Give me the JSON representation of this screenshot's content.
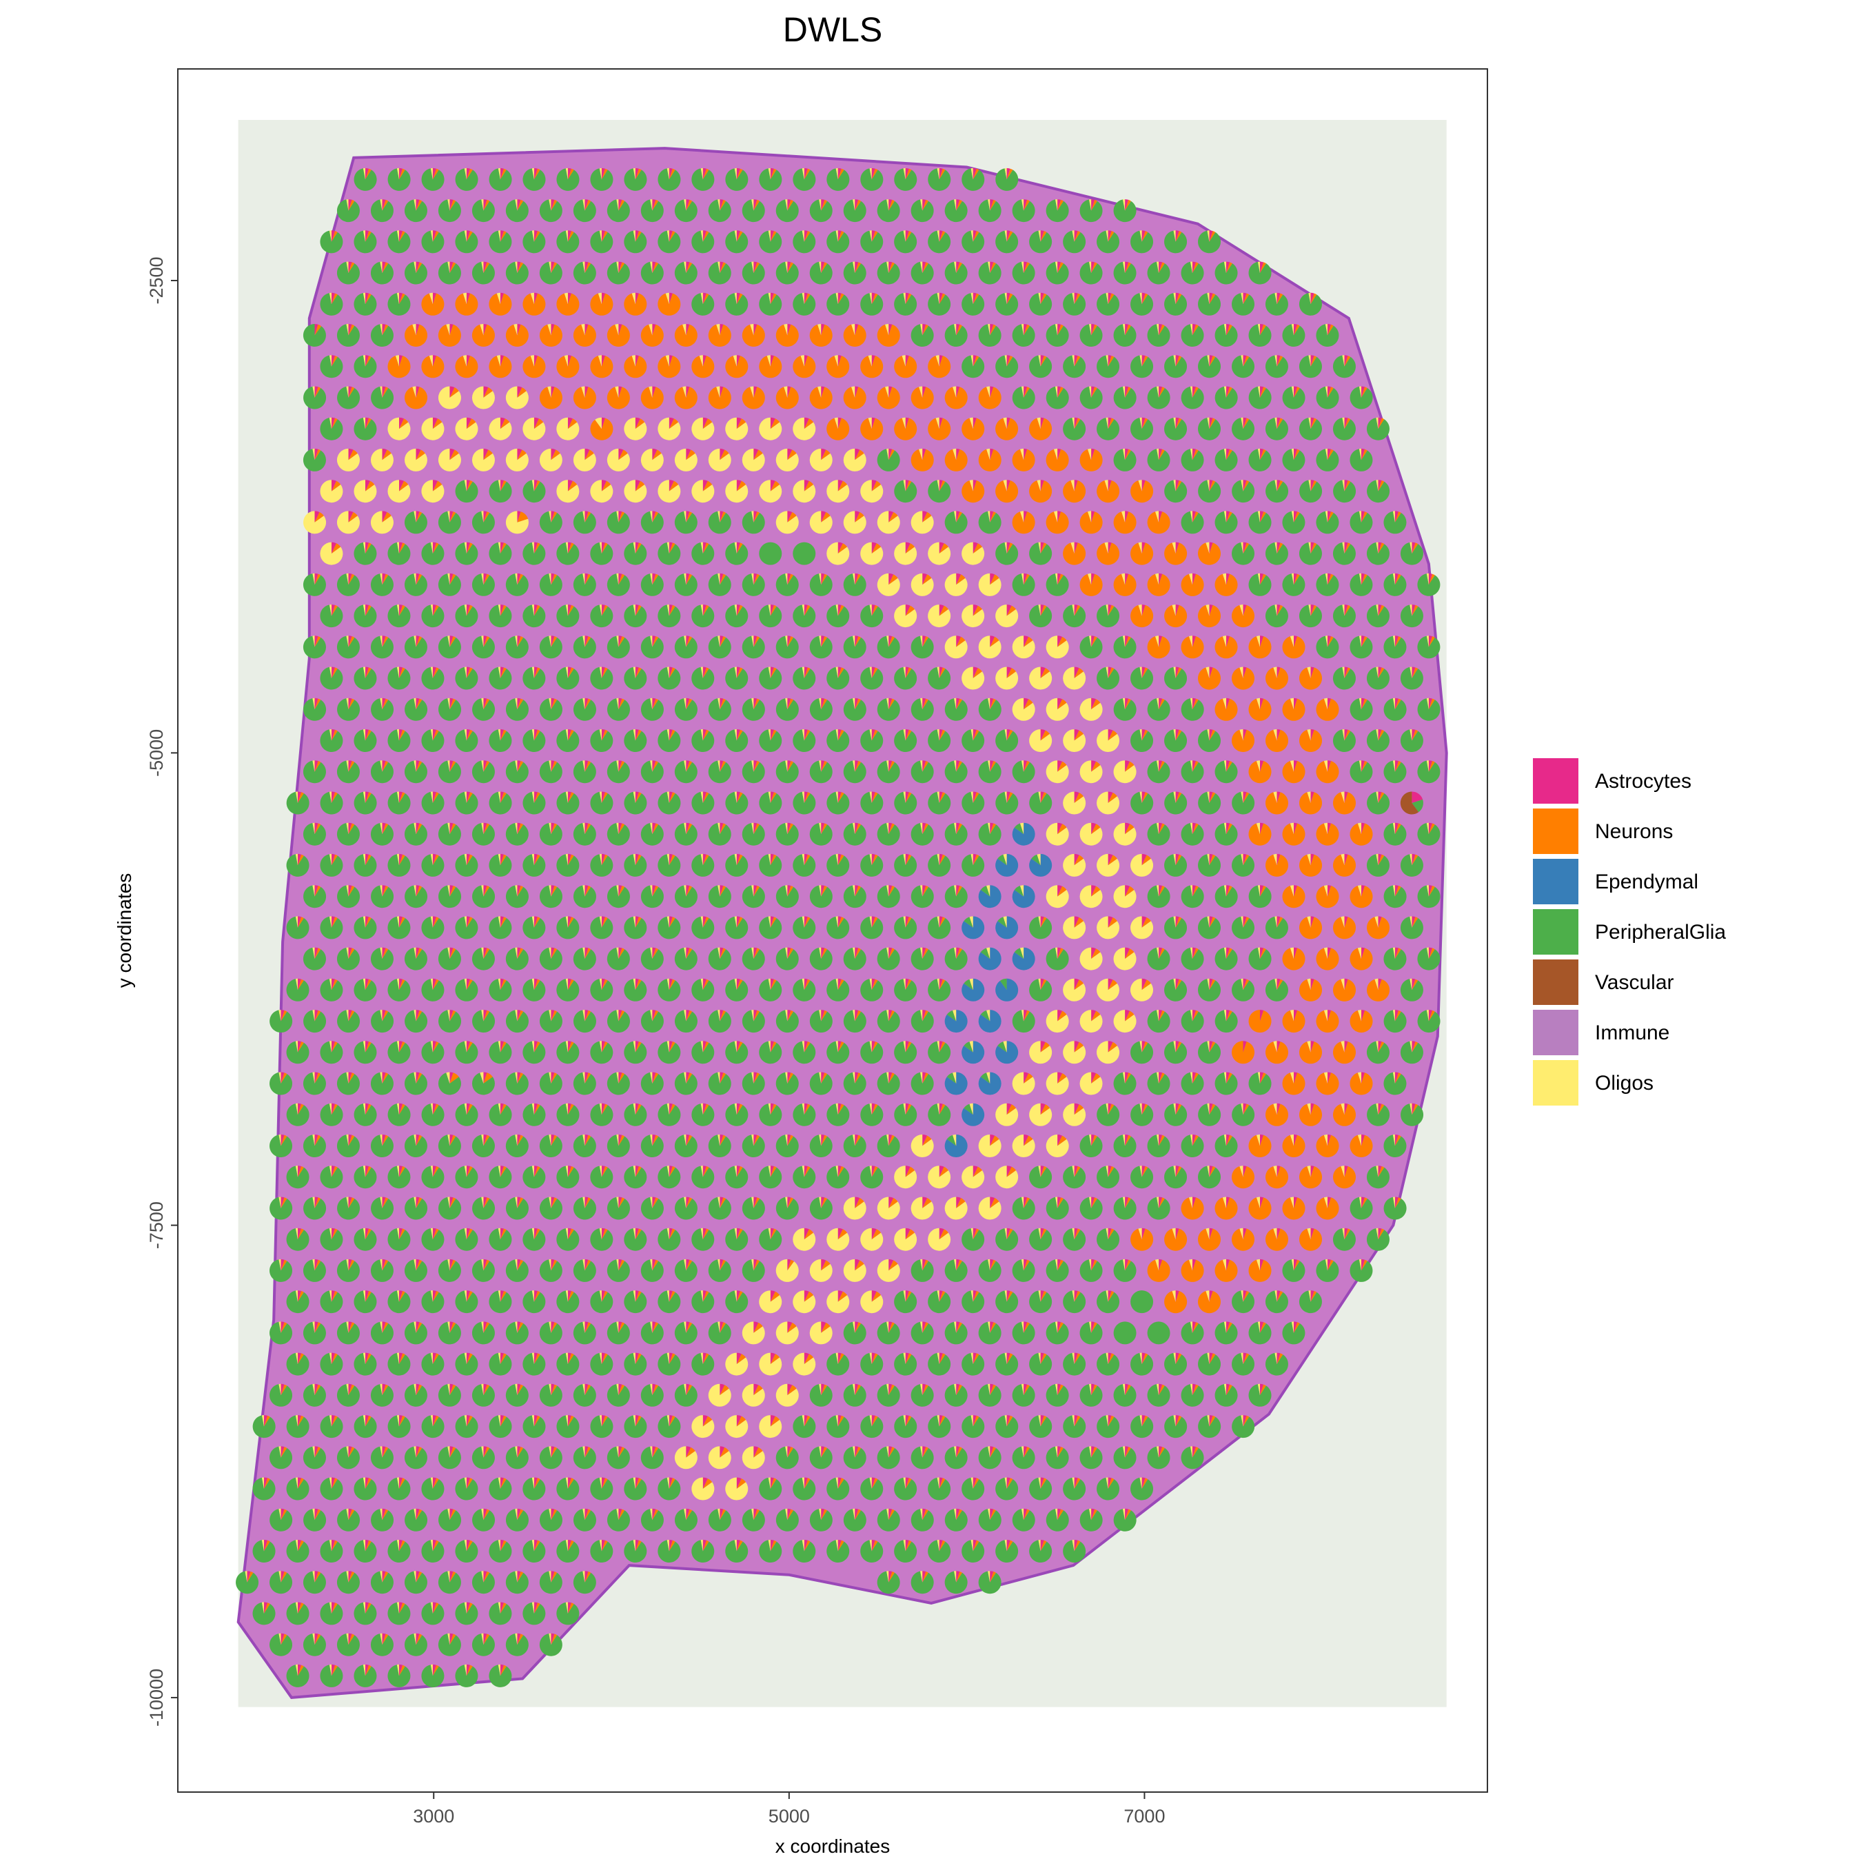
{
  "chart_data": {
    "type": "scatter",
    "title": "DWLS",
    "xlabel": "x coordinates",
    "ylabel": "y coordinates",
    "xlim": [
      1560,
      8930
    ],
    "ylim": [
      -10500,
      -1380
    ],
    "x_ticks": [
      3000,
      5000,
      7000
    ],
    "x_tick_labels": [
      "3000",
      "5000",
      "7000"
    ],
    "y_ticks": [
      -2500,
      -5000,
      -7500,
      -10000
    ],
    "y_tick_labels": [
      "-2500",
      "-5000",
      "-7500",
      "-10000"
    ],
    "grid": false,
    "legend_position": "right",
    "legend": [
      {
        "name": "Astrocytes",
        "color": "#E7298A"
      },
      {
        "name": "Neurons",
        "color": "#FF7F00"
      },
      {
        "name": "Ependymal",
        "color": "#377EB8"
      },
      {
        "name": "PeripheralGlia",
        "color": "#4DAF4A"
      },
      {
        "name": "Vascular",
        "color": "#A65628"
      },
      {
        "name": "Immune",
        "color": "#B87FC0"
      },
      {
        "name": "Oligos",
        "color": "#FFED6F"
      }
    ],
    "tissue_region": {
      "outline": [
        [
          2300,
          -2700
        ],
        [
          2550,
          -1850
        ],
        [
          4300,
          -1800
        ],
        [
          6000,
          -1900
        ],
        [
          7300,
          -2200
        ],
        [
          8150,
          -2700
        ],
        [
          8600,
          -4000
        ],
        [
          8700,
          -5000
        ],
        [
          8650,
          -6500
        ],
        [
          8400,
          -7500
        ],
        [
          7700,
          -8500
        ],
        [
          6600,
          -9300
        ],
        [
          5800,
          -9500
        ],
        [
          5000,
          -9350
        ],
        [
          4100,
          -9300
        ],
        [
          3500,
          -9900
        ],
        [
          2200,
          -10000
        ],
        [
          1900,
          -9600
        ],
        [
          2100,
          -8000
        ],
        [
          2150,
          -6000
        ],
        [
          2300,
          -4500
        ]
      ],
      "exclude": [
        [
          4500,
          -9300
        ],
        [
          5500,
          -9300
        ],
        [
          4500,
          -10200
        ],
        [
          5500,
          -10200
        ]
      ]
    },
    "sample_spots": [
      {
        "x": 2300,
        "y": -2700,
        "fractions": {
          "Astrocytes": 0.05,
          "Neurons": 0.05,
          "PeripheralGlia": 0.9
        }
      },
      {
        "x": 3400,
        "y": -3800,
        "fractions": {
          "Astrocytes": 0.05,
          "Neurons": 0.15,
          "Oligos": 0.8
        }
      },
      {
        "x": 4000,
        "y": -3300,
        "fractions": {
          "Astrocytes": 0.05,
          "Neurons": 0.85,
          "Oligos": 0.1
        }
      },
      {
        "x": 5000,
        "y": -4000,
        "fractions": {
          "PeripheralGlia": 1.0
        }
      },
      {
        "x": 6150,
        "y": -6200,
        "fractions": {
          "Ependymal": 0.9,
          "PeripheralGlia": 0.1
        }
      },
      {
        "x": 7600,
        "y": -6500,
        "fractions": {
          "Astrocytes": 0.05,
          "Neurons": 0.95
        }
      },
      {
        "x": 5000,
        "y": -7800,
        "fractions": {
          "Astrocytes": 0.05,
          "Neurons": 0.05,
          "Oligos": 0.9
        }
      },
      {
        "x": 3200,
        "y": -6800,
        "fractions": {
          "Astrocytes": 0.05,
          "Neurons": 0.1,
          "Oligos": 0.05,
          "PeripheralGlia": 0.8
        }
      },
      {
        "x": 8450,
        "y": -5300,
        "fractions": {
          "Vascular": 0.6,
          "Astrocytes": 0.2,
          "PeripheralGlia": 0.2
        }
      },
      {
        "x": 7000,
        "y": -8000,
        "fractions": {
          "PeripheralGlia": 1.0
        }
      }
    ],
    "spot_layout": {
      "x_step": 190,
      "y_step": 165,
      "row_offset": 95,
      "spot_radius_units": 64
    },
    "regions": [
      {
        "name": "Oligos",
        "shape": "band",
        "points": [
          [
            2500,
            -3700
          ],
          [
            3200,
            -3300
          ],
          [
            4000,
            -3400
          ],
          [
            5000,
            -3500
          ],
          [
            6000,
            -4200
          ],
          [
            6700,
            -5000
          ],
          [
            6800,
            -6200
          ],
          [
            6300,
            -7000
          ],
          [
            5200,
            -7800
          ],
          [
            4600,
            -8800
          ]
        ],
        "fractions": {
          "Oligos": 0.85,
          "Neurons": 0.08,
          "Astrocytes": 0.07
        }
      },
      {
        "name": "Neurons",
        "shape": "band",
        "points": [
          [
            3000,
            -2900
          ],
          [
            4000,
            -2900
          ],
          [
            5500,
            -3000
          ],
          [
            6800,
            -3800
          ],
          [
            7700,
            -4700
          ],
          [
            8100,
            -6000
          ],
          [
            7900,
            -7300
          ],
          [
            7200,
            -7700
          ]
        ],
        "fractions": {
          "Neurons": 0.9,
          "Astrocytes": 0.05,
          "Oligos": 0.05
        }
      },
      {
        "name": "Ependymal",
        "shape": "band",
        "points": [
          [
            6300,
            -5500
          ],
          [
            6100,
            -6300
          ],
          [
            6000,
            -7100
          ]
        ],
        "fractions": {
          "Ependymal": 0.85,
          "PeripheralGlia": 0.1,
          "Oligos": 0.05
        }
      }
    ]
  }
}
